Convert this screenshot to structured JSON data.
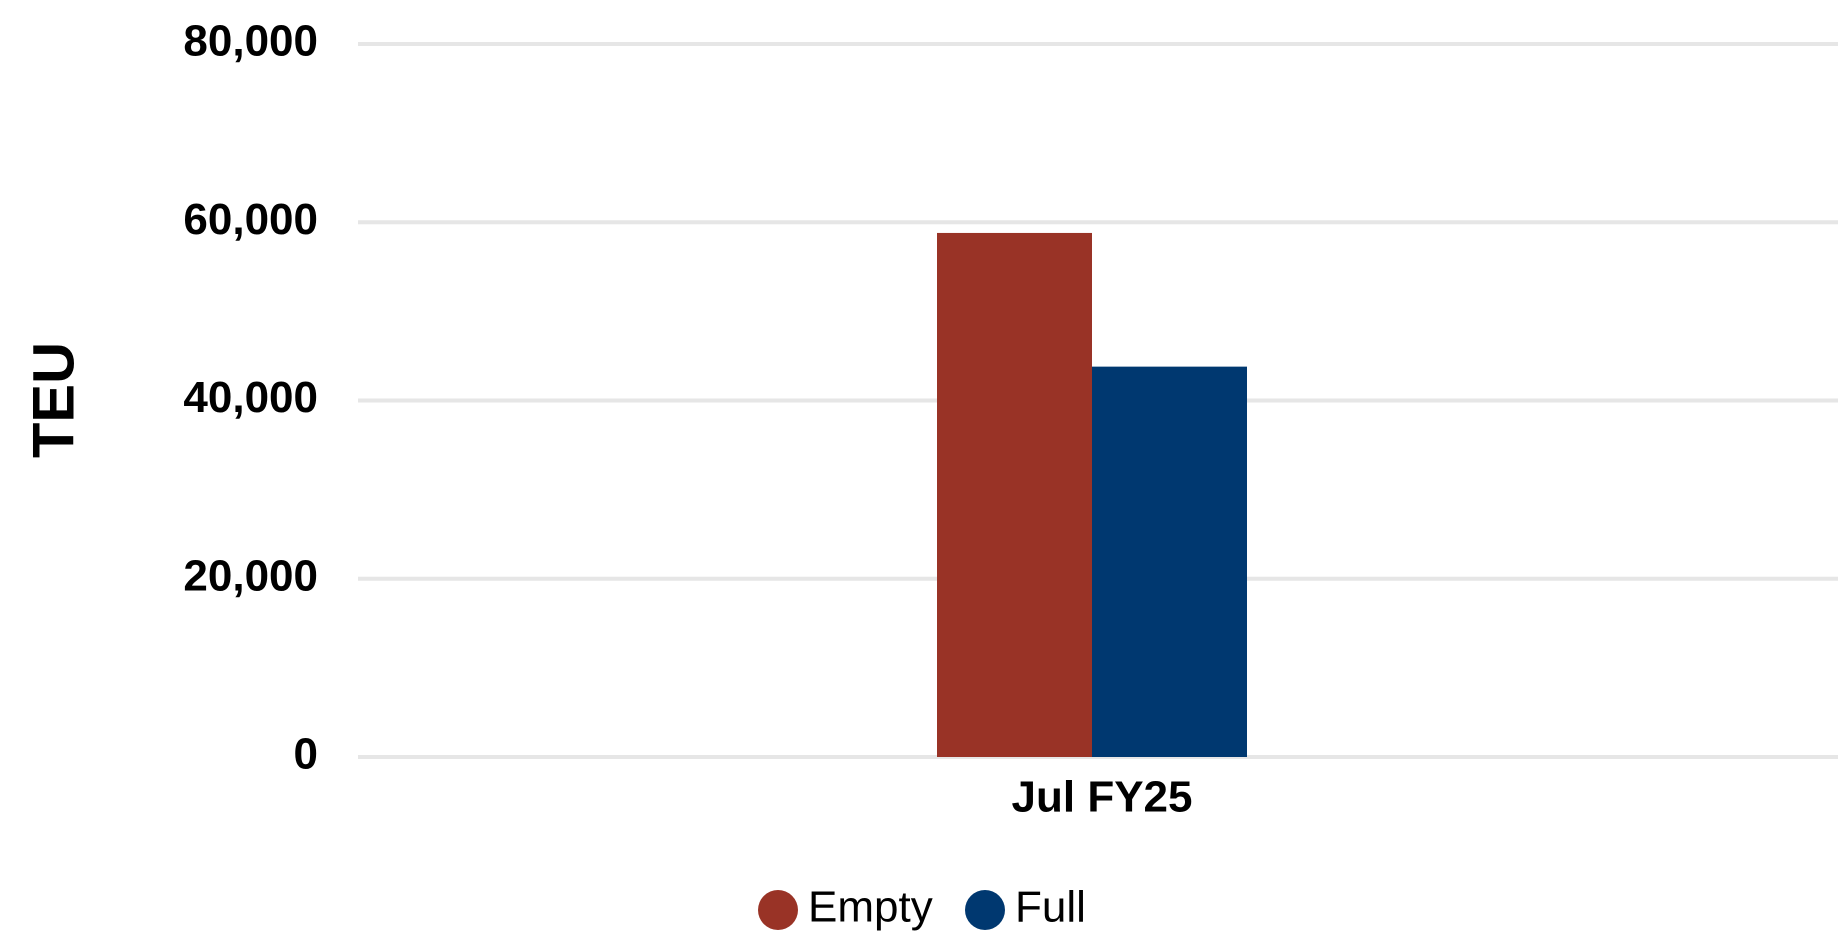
{
  "chart_data": {
    "type": "bar",
    "categories": [
      "Jul FY25"
    ],
    "series": [
      {
        "name": "Empty",
        "values": [
          58800
        ],
        "color": "#993326"
      },
      {
        "name": "Full",
        "values": [
          43800
        ],
        "color": "#003870"
      }
    ],
    "title": "",
    "xlabel": "",
    "ylabel": "TEU",
    "ylim": [
      0,
      80000
    ],
    "yticks": [
      0,
      20000,
      40000,
      60000,
      80000
    ],
    "ytick_labels": [
      "0",
      "20,000",
      "40,000",
      "60,000",
      "80,000"
    ],
    "grid": true,
    "gridline_color": "#e6e6e6",
    "legend": "bottom-center"
  }
}
